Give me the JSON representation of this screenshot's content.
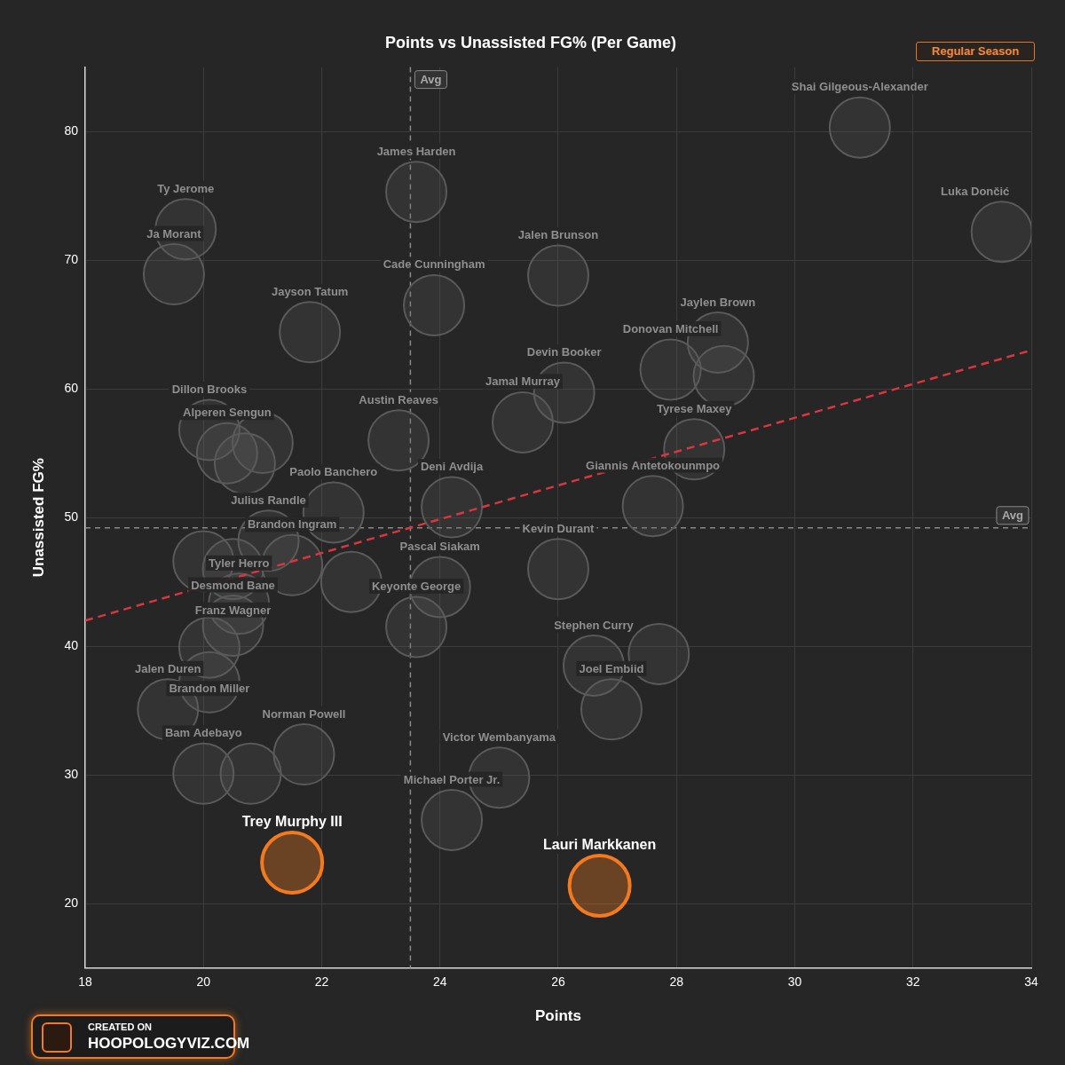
{
  "chart_data": {
    "type": "scatter",
    "title": "Points vs Unassisted FG% (Per Game)",
    "x_label": "Points",
    "y_label": "Unassisted FG%",
    "badge": "Regular Season",
    "credit": [
      "CREATED ON",
      "HOOPOLOGYVIZ.COM"
    ],
    "xlim": [
      18,
      34
    ],
    "xticks": [
      18,
      20,
      22,
      24,
      26,
      28,
      30,
      32,
      34
    ],
    "ylim": [
      15,
      85
    ],
    "yticks": [
      20,
      30,
      40,
      50,
      60,
      70,
      80
    ],
    "grid": true,
    "labels": [
      "Shai Gilgeous-Alexander",
      "Luka Dončić",
      "James Harden",
      "Ty Jerome",
      "Ja Morant",
      "Jalen Brunson",
      "Cade Cunningham",
      "Jayson Tatum",
      "Jaylen Brown",
      "Donovan Mitchell",
      "Devin Booker",
      "Jamal Murray",
      "Tyrese Maxey",
      "Austin Reaves",
      "Dillon Brooks",
      "Alperen Sengun",
      "Giannis Antetokounmpo",
      "Deni Avdija",
      "Paolo Banchero",
      "Julius Randle",
      "Brandon Ingram",
      "Kevin Durant",
      "Franz Wagner",
      "Pascal Siakam",
      "Tyler Herro",
      "Keyonte George",
      "Desmond Bane",
      "Brandon Miller",
      "Stephen Curry",
      "Joel Embiid",
      "Jalen Duren",
      "Norman Powell",
      "Bam Adebayo",
      "Victor Wembanyama",
      "Michael Porter Jr.",
      null,
      null,
      null,
      null,
      null,
      null,
      null,
      null,
      "Trey Murphy III",
      "Lauri Markkanen"
    ],
    "x": [
      31.1,
      33.5,
      23.6,
      19.7,
      19.5,
      26.0,
      23.9,
      21.8,
      28.7,
      27.9,
      26.1,
      25.4,
      28.3,
      23.3,
      20.1,
      20.4,
      27.6,
      24.2,
      22.2,
      21.1,
      21.5,
      26.0,
      20.5,
      24.0,
      20.6,
      23.6,
      20.5,
      20.1,
      26.6,
      26.9,
      19.4,
      21.7,
      20.0,
      25.0,
      24.2,
      28.8,
      21.0,
      20.7,
      22.5,
      20.1,
      27.7,
      20.8,
      20.0,
      21.5,
      26.7
    ],
    "values": [
      80.3,
      72.2,
      75.3,
      72.4,
      68.9,
      68.8,
      66.5,
      64.4,
      63.6,
      61.5,
      59.7,
      57.4,
      55.3,
      56.0,
      56.8,
      55.0,
      50.9,
      50.8,
      50.4,
      48.2,
      46.3,
      46.0,
      46.0,
      44.6,
      43.3,
      41.5,
      41.6,
      39.9,
      38.5,
      35.1,
      35.1,
      31.6,
      30.1,
      29.8,
      26.5,
      61.0,
      55.8,
      54.2,
      45.0,
      37.2,
      39.4,
      30.1,
      46.6,
      23.2,
      21.4
    ],
    "colors": [
      "#5a5a5a",
      "#5a5a5a",
      "#5a5a5a",
      "#5a5a5a",
      "#5a5a5a",
      "#5a5a5a",
      "#5a5a5a",
      "#5a5a5a",
      "#5a5a5a",
      "#5a5a5a",
      "#5a5a5a",
      "#5a5a5a",
      "#5a5a5a",
      "#5a5a5a",
      "#5a5a5a",
      "#5a5a5a",
      "#5a5a5a",
      "#5a5a5a",
      "#5a5a5a",
      "#5a5a5a",
      "#5a5a5a",
      "#5a5a5a",
      "#5a5a5a",
      "#5a5a5a",
      "#5a5a5a",
      "#5a5a5a",
      "#5a5a5a",
      "#5a5a5a",
      "#5a5a5a",
      "#5a5a5a",
      "#5a5a5a",
      "#5a5a5a",
      "#5a5a5a",
      "#5a5a5a",
      "#5a5a5a",
      "#5a5a5a",
      "#5a5a5a",
      "#5a5a5a",
      "#5a5a5a",
      "#5a5a5a",
      "#5a5a5a",
      "#5a5a5a",
      "#5a5a5a",
      "#f47a20",
      "#f47a20"
    ],
    "marker": "circle",
    "reference_lines": [
      {
        "axis": "x",
        "value": 23.5,
        "label": "Avg"
      },
      {
        "axis": "y",
        "value": 49.2,
        "label": "Avg"
      }
    ],
    "trend_line": {
      "x": [
        18,
        34
      ],
      "values": [
        42,
        63
      ],
      "color": "#d9363e",
      "line_style": "dashed"
    }
  }
}
